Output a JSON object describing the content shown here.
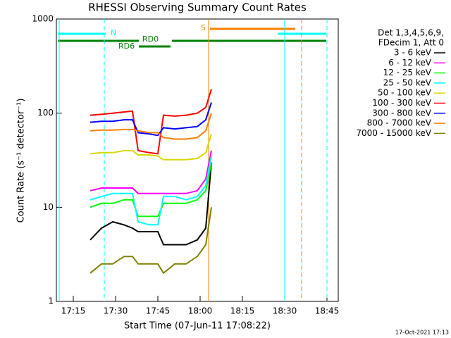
{
  "chart_data": {
    "type": "line",
    "title": "RHESSI Observing Summary Count Rates",
    "x_label": "Start Time (07-Jun-11 17:08:22)",
    "y_label": "Count Rate (s⁻¹ detector⁻¹)",
    "footer": "17-Oct-2021 17:13",
    "legend_header": [
      "Det 1,3,4,5,6,9,",
      "FDecim 1, Att 0"
    ],
    "flags": {
      "n": "N",
      "s": "S",
      "rd0": "RD0",
      "rd6": "RD6"
    },
    "log_y": true,
    "xlim": [
      "17:09",
      "18:49"
    ],
    "xticks": [
      "17:15",
      "17:30",
      "17:45",
      "18:00",
      "18:15",
      "18:30",
      "18:45"
    ],
    "ylim": [
      1,
      1000
    ],
    "yticks": [
      1,
      10,
      100,
      1000
    ],
    "vlines": [
      {
        "x": "17:10",
        "color": "#00ffff",
        "dash": false
      },
      {
        "x": "17:26",
        "color": "#00ffff",
        "dash": true
      },
      {
        "x": "18:03",
        "color": "#ff8000",
        "dash": false
      },
      {
        "x": "18:30",
        "color": "#00ffff",
        "dash": false
      },
      {
        "x": "18:36",
        "color": "#ff8000",
        "dash": true
      },
      {
        "x": "18:45",
        "color": "#00ffff",
        "dash": true
      }
    ],
    "x": [
      "17:21",
      "17:25",
      "17:29",
      "17:33",
      "17:36",
      "17:38",
      "17:42",
      "17:45",
      "17:47",
      "17:51",
      "17:55",
      "17:59",
      "18:02",
      "18:04"
    ],
    "series": [
      {
        "name": "3 - 6 keV",
        "color": "#000000",
        "values": [
          4.5,
          6,
          7,
          6.5,
          6,
          5.5,
          5.5,
          5.5,
          4,
          4,
          4,
          4.5,
          6,
          30
        ]
      },
      {
        "name": "6 - 12 keV",
        "color": "#ff00ff",
        "values": [
          15,
          16,
          16,
          16,
          16,
          14,
          14,
          14,
          14,
          14,
          14,
          15,
          20,
          40
        ]
      },
      {
        "name": "12 - 25 keV",
        "color": "#00ff00",
        "values": [
          10,
          11,
          11,
          12,
          12,
          8,
          8,
          8,
          11,
          11,
          11,
          12,
          15,
          30
        ]
      },
      {
        "name": "25 - 50 keV",
        "color": "#00ffff",
        "values": [
          12,
          13,
          14,
          14,
          14,
          7,
          6.5,
          6.5,
          13,
          13,
          12,
          13,
          17,
          35
        ]
      },
      {
        "name": "50 - 100 keV",
        "color": "#d8d800",
        "values": [
          37,
          38,
          38,
          40,
          40,
          36,
          36,
          35,
          32,
          32,
          32,
          33,
          38,
          60
        ]
      },
      {
        "name": "100 - 300 keV",
        "color": "#ff0000",
        "values": [
          95,
          97,
          100,
          103,
          105,
          40,
          38,
          37,
          95,
          93,
          95,
          100,
          115,
          180
        ]
      },
      {
        "name": "300 - 800 keV",
        "color": "#0000ff",
        "values": [
          80,
          82,
          82,
          85,
          85,
          62,
          60,
          58,
          70,
          68,
          70,
          72,
          85,
          130
        ]
      },
      {
        "name": "800 - 7000 keV",
        "color": "#ff8000",
        "values": [
          65,
          66,
          66,
          67,
          67,
          65,
          62,
          62,
          55,
          53,
          53,
          55,
          65,
          100
        ]
      },
      {
        "name": "7000 - 15000 keV",
        "color": "#808000",
        "values": [
          2,
          2.5,
          2.5,
          3,
          3,
          2.5,
          2.5,
          2.5,
          2,
          2.5,
          2.5,
          3,
          4,
          10
        ]
      }
    ]
  }
}
